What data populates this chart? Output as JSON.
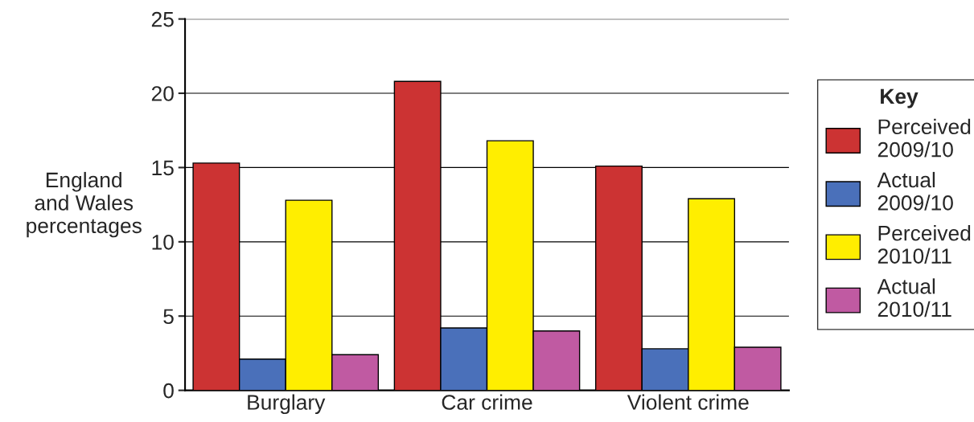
{
  "chart_data": {
    "type": "bar",
    "ylabel": "England\nand Wales\npercentages",
    "legend_title": "Key",
    "categories": [
      "Burglary",
      "Car crime",
      "Violent crime"
    ],
    "series": [
      {
        "name": "Perceived\n2009/10",
        "color": "#cc3333",
        "values": [
          15.3,
          20.8,
          15.1
        ]
      },
      {
        "name": "Actual\n2009/10",
        "color": "#4a70ba",
        "values": [
          2.1,
          4.2,
          2.8
        ]
      },
      {
        "name": "Perceived\n2010/11",
        "color": "#ffee00",
        "values": [
          12.8,
          16.8,
          12.9
        ]
      },
      {
        "name": "Actual\n2010/11",
        "color": "#c05aa2",
        "values": [
          2.4,
          4.0,
          2.9
        ]
      }
    ],
    "ylim": [
      0,
      25
    ],
    "yticks": [
      0,
      5,
      10,
      15,
      20,
      25
    ],
    "grid": "y",
    "legend": "right"
  }
}
